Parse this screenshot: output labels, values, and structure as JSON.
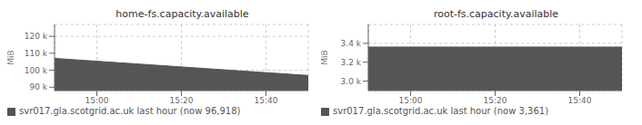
{
  "chart_data": [
    {
      "type": "area",
      "title": "home-fs.capacity.available",
      "y_label": "MiB",
      "x": [
        0,
        60
      ],
      "series": [
        {
          "name": "svr017.gla.scotgrid.ac.uk last hour (now 96,918)",
          "color": "#555555",
          "values": [
            107000,
            96918
          ]
        }
      ],
      "xlim": [
        0,
        60
      ],
      "xticks": [
        {
          "value": 10,
          "label": "15:00"
        },
        {
          "value": 30,
          "label": "15:20"
        },
        {
          "value": 50,
          "label": "15:40"
        }
      ],
      "ylim": [
        88000,
        127000
      ],
      "yticks": [
        {
          "value": 90000,
          "label": "90 k"
        },
        {
          "value": 100000,
          "label": "100 k"
        },
        {
          "value": 110000,
          "label": "110 k"
        },
        {
          "value": 120000,
          "label": "120 k"
        }
      ],
      "grid": true,
      "legend": "bottom"
    },
    {
      "type": "area",
      "title": "root-fs.capacity.available",
      "y_label": "MiB",
      "x": [
        0,
        60
      ],
      "series": [
        {
          "name": "svr017.gla.scotgrid.ac.uk last hour (now 3,361)",
          "color": "#555555",
          "values": [
            3361,
            3361
          ]
        }
      ],
      "xlim": [
        0,
        60
      ],
      "xticks": [
        {
          "value": 10,
          "label": "15:00"
        },
        {
          "value": 30,
          "label": "15:20"
        },
        {
          "value": 50,
          "label": "15:40"
        }
      ],
      "ylim": [
        2900,
        3600
      ],
      "yticks": [
        {
          "value": 3000,
          "label": "3.0 k"
        },
        {
          "value": 3200,
          "label": "3.2 k"
        },
        {
          "value": 3400,
          "label": "3.4 k"
        }
      ],
      "grid": true,
      "legend": "bottom"
    }
  ]
}
